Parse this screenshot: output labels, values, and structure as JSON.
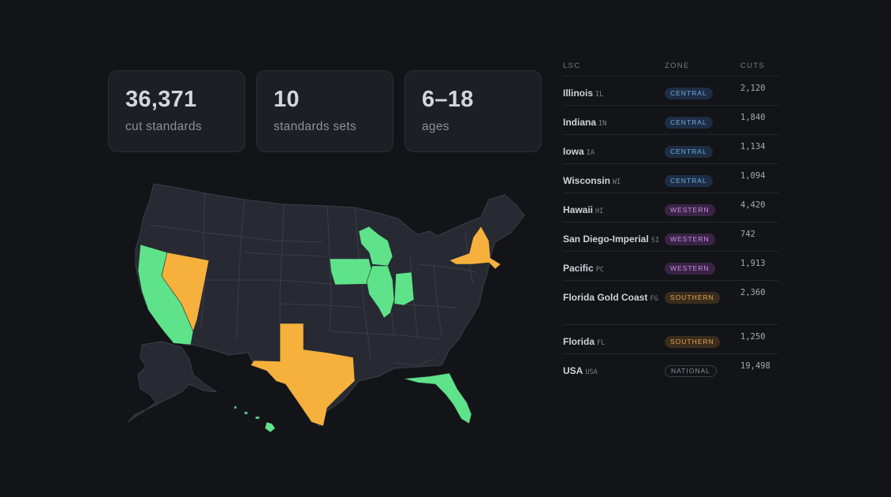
{
  "stats": [
    {
      "value": "36,371",
      "label": "cut standards"
    },
    {
      "value": "10",
      "label": "standards sets"
    },
    {
      "value": "6–18",
      "label": "ages"
    }
  ],
  "colors": {
    "background": "#131418",
    "map_base": "#272a32",
    "map_border": "#3b3e47",
    "highlight_green": "#5ee38a",
    "highlight_orange": "#f6b13c"
  },
  "map": {
    "green_states": [
      "California",
      "Illinois",
      "Indiana",
      "Iowa",
      "Wisconsin",
      "Florida",
      "Hawaii"
    ],
    "orange_states": [
      "Nevada",
      "Texas",
      "New York"
    ]
  },
  "table": {
    "headers": {
      "lsc": "LSC",
      "zone": "ZONE",
      "cuts": "CUTS"
    },
    "rows": [
      {
        "name": "Illinois",
        "code": "IL",
        "zone": "CENTRAL",
        "cuts": "2,120"
      },
      {
        "name": "Indiana",
        "code": "IN",
        "zone": "CENTRAL",
        "cuts": "1,840"
      },
      {
        "name": "Iowa",
        "code": "IA",
        "zone": "CENTRAL",
        "cuts": "1,134"
      },
      {
        "name": "Wisconsin",
        "code": "WI",
        "zone": "CENTRAL",
        "cuts": "1,094"
      },
      {
        "name": "Hawaii",
        "code": "HI",
        "zone": "WESTERN",
        "cuts": "4,420"
      },
      {
        "name": "San Diego-Imperial",
        "code": "SI",
        "zone": "WESTERN",
        "cuts": "742"
      },
      {
        "name": "Pacific",
        "code": "PC",
        "zone": "WESTERN",
        "cuts": "1,913"
      },
      {
        "name": "Florida Gold Coast",
        "code": "FG",
        "zone": "SOUTHERN",
        "cuts": "2,360"
      },
      {
        "name": "Florida",
        "code": "FL",
        "zone": "SOUTHERN",
        "cuts": "1,250"
      },
      {
        "name": "USA",
        "code": "USA",
        "zone": "NATIONAL",
        "cuts": "19,498"
      }
    ]
  }
}
